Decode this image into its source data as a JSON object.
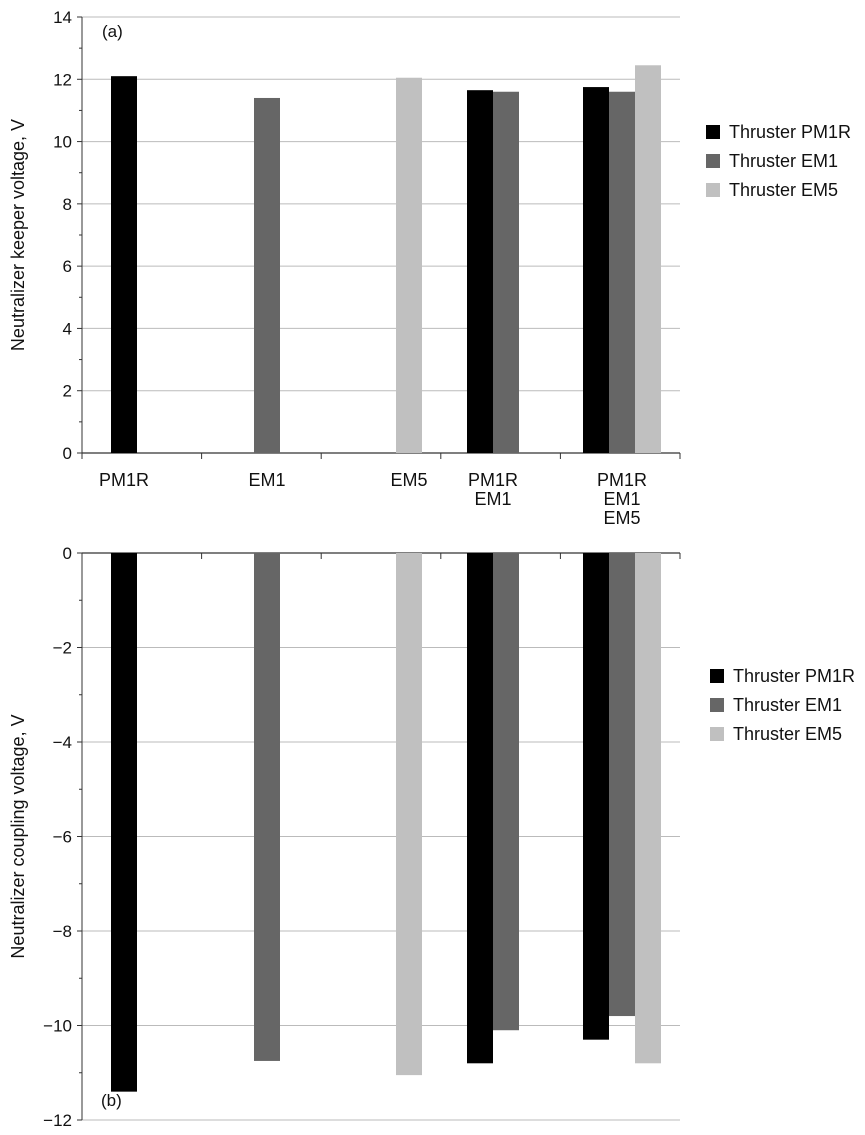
{
  "chart_data": [
    {
      "type": "bar",
      "panel_label": "(a)",
      "ylabel": "Neutralizer keeper voltage, V",
      "xlabel": "",
      "ylim": [
        0,
        14
      ],
      "yticks": [
        0,
        2,
        4,
        6,
        8,
        10,
        12,
        14
      ],
      "grid": true,
      "legend": "right",
      "categories": [
        [
          "PM1R"
        ],
        [
          "EM1"
        ],
        [
          "EM5"
        ],
        [
          "PM1R",
          "EM1"
        ],
        [
          "PM1R",
          "EM1",
          "EM5"
        ]
      ],
      "series": [
        {
          "name": "Thruster PM1R",
          "color": "#000000",
          "values": [
            12.1,
            null,
            null,
            11.65,
            11.75
          ]
        },
        {
          "name": "Thruster EM1",
          "color": "#666666",
          "values": [
            null,
            11.4,
            null,
            11.6,
            11.6
          ]
        },
        {
          "name": "Thruster EM5",
          "color": "#c0c0c0",
          "values": [
            null,
            null,
            12.05,
            null,
            12.45
          ]
        }
      ]
    },
    {
      "type": "bar",
      "panel_label": "(b)",
      "ylabel": "Neutralizer coupling voltage, V",
      "xlabel": "",
      "ylim": [
        -12,
        0
      ],
      "yticks": [
        0,
        -2,
        -4,
        -6,
        -8,
        -10,
        -12
      ],
      "grid": true,
      "legend": "right",
      "categories": [
        [
          "PM1R"
        ],
        [
          "EM1"
        ],
        [
          "EM5"
        ],
        [
          "PM1R",
          "EM1"
        ],
        [
          "PM1R",
          "EM1",
          "EM5"
        ]
      ],
      "series": [
        {
          "name": "Thruster PM1R",
          "color": "#000000",
          "values": [
            -11.4,
            null,
            null,
            -10.8,
            -10.3
          ]
        },
        {
          "name": "Thruster EM1",
          "color": "#666666",
          "values": [
            null,
            -10.75,
            null,
            -10.1,
            -9.8
          ]
        },
        {
          "name": "Thruster EM5",
          "color": "#c0c0c0",
          "values": [
            null,
            null,
            -11.05,
            null,
            -10.8
          ]
        }
      ]
    }
  ]
}
